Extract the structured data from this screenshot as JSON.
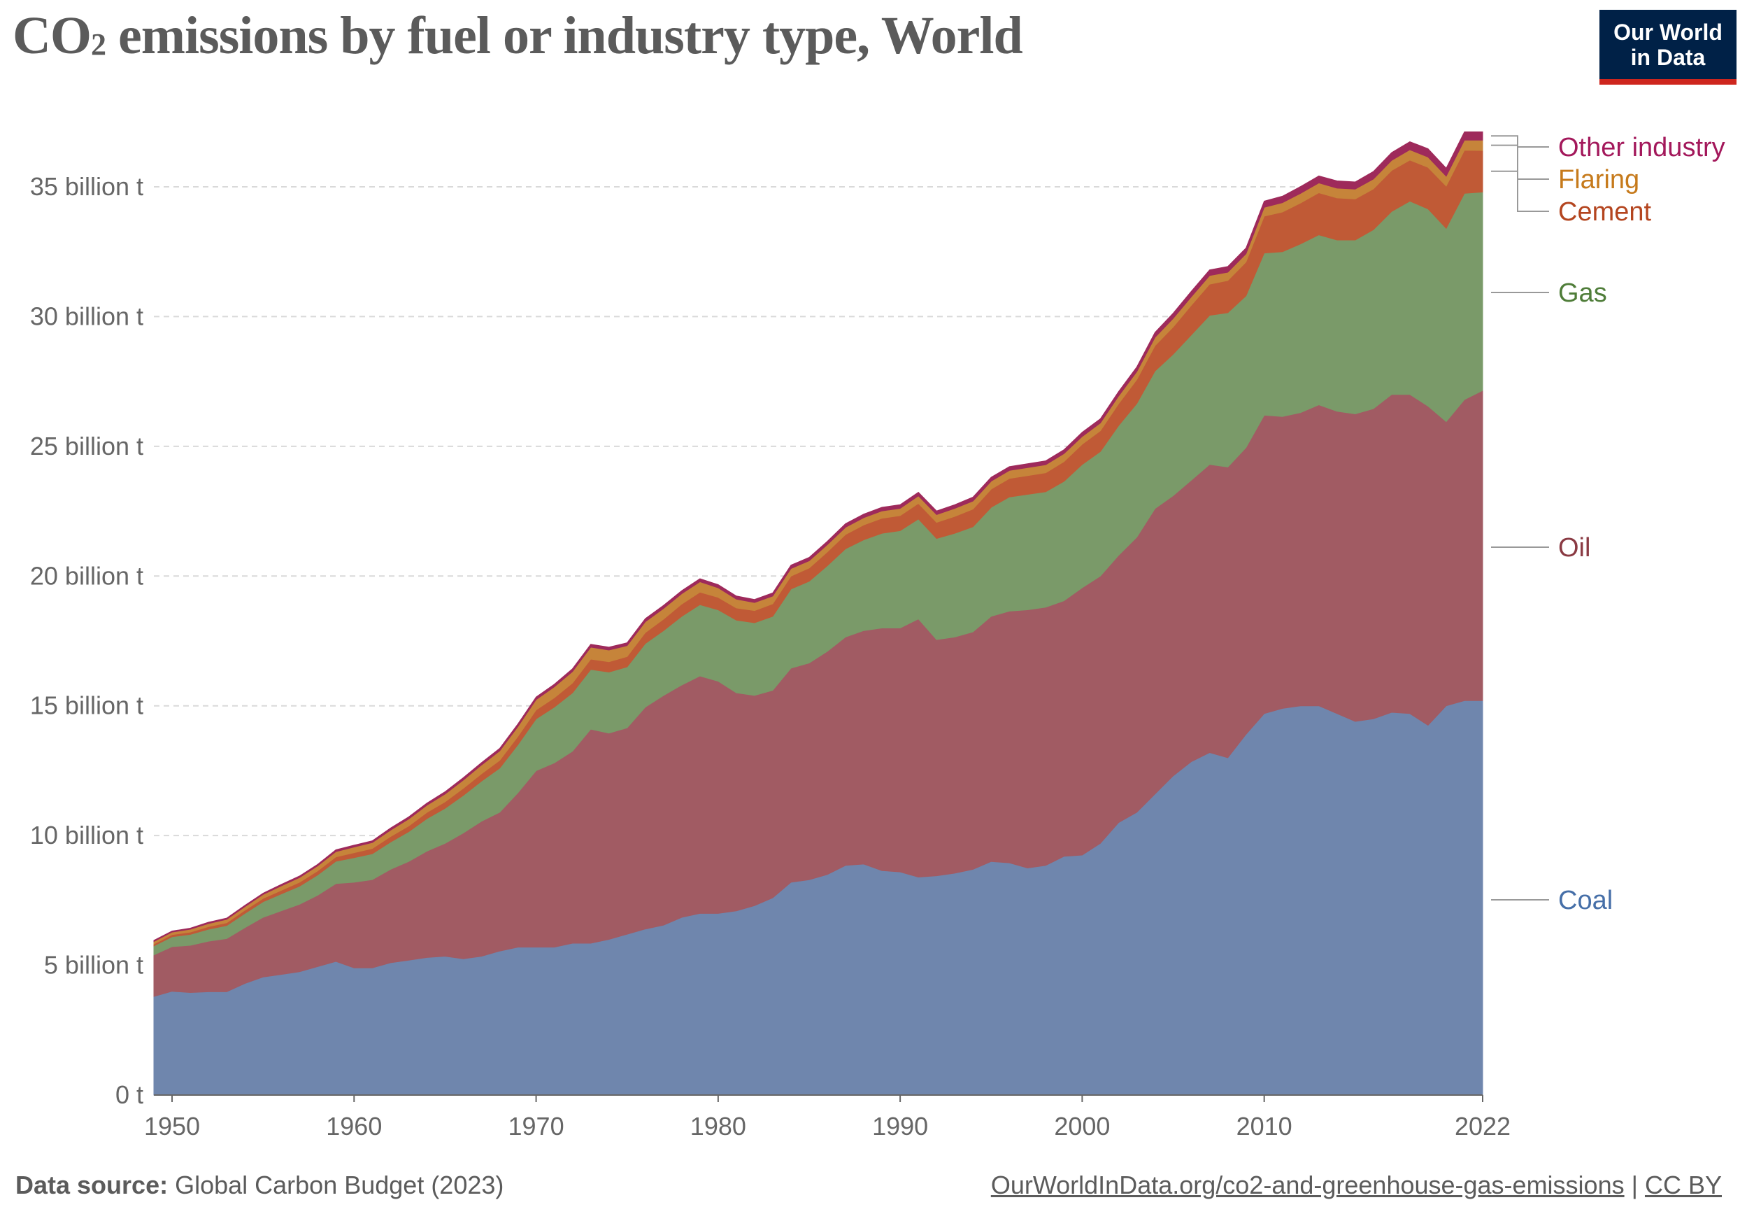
{
  "title_main": "CO",
  "title_sub": "2",
  "title_rest": " emissions by fuel or industry type, World",
  "logo": {
    "line1": "Our World",
    "line2": "in Data"
  },
  "footer": {
    "source_label": "Data source:",
    "source_text": " Global Carbon Budget (2023)",
    "url": "OurWorldInData.org/co2-and-greenhouse-gas-emissions",
    "sep": " | ",
    "license": "CC BY"
  },
  "chart_data": {
    "type": "area",
    "stacked": true,
    "grid": "horizontal dashed",
    "legend": "right, labels at series ends",
    "xlim": [
      1949,
      2022
    ],
    "ylim": [
      0,
      37
    ],
    "yunit": "billion t",
    "x_ticks": [
      "1950",
      "1960",
      "1970",
      "1980",
      "1990",
      "2000",
      "2010",
      "2022"
    ],
    "y_ticks": [
      "0 t",
      "5 billion t",
      "10 billion t",
      "15 billion t",
      "20 billion t",
      "25 billion t",
      "30 billion t",
      "35 billion t"
    ],
    "x": [
      1949,
      1950,
      1951,
      1952,
      1953,
      1954,
      1955,
      1956,
      1957,
      1958,
      1959,
      1960,
      1961,
      1962,
      1963,
      1964,
      1965,
      1966,
      1967,
      1968,
      1969,
      1970,
      1971,
      1972,
      1973,
      1974,
      1975,
      1976,
      1977,
      1978,
      1979,
      1980,
      1981,
      1982,
      1983,
      1984,
      1985,
      1986,
      1987,
      1988,
      1989,
      1990,
      1991,
      1992,
      1993,
      1994,
      1995,
      1996,
      1997,
      1998,
      1999,
      2000,
      2001,
      2002,
      2003,
      2004,
      2005,
      2006,
      2007,
      2008,
      2009,
      2010,
      2011,
      2012,
      2013,
      2014,
      2015,
      2016,
      2017,
      2018,
      2019,
      2020,
      2021,
      2022
    ],
    "series": [
      {
        "name": "Coal",
        "color": "#6f86ad",
        "values": [
          3.8,
          4.0,
          3.95,
          3.98,
          3.98,
          4.3,
          4.55,
          4.65,
          4.75,
          4.95,
          5.15,
          4.9,
          4.9,
          5.1,
          5.2,
          5.3,
          5.35,
          5.25,
          5.35,
          5.55,
          5.7,
          5.7,
          5.7,
          5.85,
          5.85,
          6.0,
          6.2,
          6.4,
          6.55,
          6.85,
          7.0,
          7.0,
          7.1,
          7.3,
          7.6,
          8.2,
          8.3,
          8.5,
          8.85,
          8.9,
          8.65,
          8.6,
          8.4,
          8.45,
          8.55,
          8.7,
          9.0,
          8.95,
          8.75,
          8.85,
          9.2,
          9.25,
          9.7,
          10.5,
          10.9,
          11.6,
          12.3,
          12.85,
          13.2,
          13.0,
          13.9,
          14.7,
          14.9,
          15.0,
          15.0,
          14.7,
          14.4,
          14.5,
          14.75,
          14.7,
          14.25,
          15.0,
          15.2,
          15.2
        ]
      },
      {
        "name": "Oil",
        "color": "#a15b63",
        "values": [
          1.6,
          1.72,
          1.82,
          1.95,
          2.05,
          2.15,
          2.3,
          2.45,
          2.6,
          2.75,
          3.0,
          3.3,
          3.4,
          3.6,
          3.8,
          4.1,
          4.35,
          4.85,
          5.2,
          5.35,
          5.95,
          6.8,
          7.1,
          7.4,
          8.25,
          7.95,
          7.95,
          8.55,
          8.85,
          8.95,
          9.15,
          8.95,
          8.4,
          8.1,
          8.0,
          8.25,
          8.35,
          8.6,
          8.8,
          9.0,
          9.35,
          9.4,
          9.95,
          9.1,
          9.1,
          9.15,
          9.45,
          9.7,
          9.95,
          9.95,
          9.85,
          10.3,
          10.3,
          10.3,
          10.6,
          11.0,
          10.8,
          10.85,
          11.1,
          11.2,
          11.05,
          11.5,
          11.25,
          11.3,
          11.6,
          11.65,
          11.85,
          11.95,
          12.25,
          12.3,
          12.3,
          10.95,
          11.6,
          11.95
        ]
      },
      {
        "name": "Gas",
        "color": "#7a9a69",
        "values": [
          0.35,
          0.38,
          0.42,
          0.46,
          0.5,
          0.55,
          0.6,
          0.65,
          0.7,
          0.78,
          0.86,
          0.95,
          1.0,
          1.05,
          1.15,
          1.25,
          1.35,
          1.45,
          1.55,
          1.7,
          1.85,
          2.0,
          2.15,
          2.25,
          2.3,
          2.35,
          2.35,
          2.45,
          2.5,
          2.65,
          2.75,
          2.75,
          2.8,
          2.8,
          2.85,
          3.05,
          3.15,
          3.3,
          3.4,
          3.5,
          3.65,
          3.75,
          3.85,
          3.9,
          4.0,
          4.05,
          4.2,
          4.4,
          4.45,
          4.45,
          4.6,
          4.75,
          4.8,
          5.0,
          5.15,
          5.3,
          5.45,
          5.6,
          5.75,
          5.95,
          5.85,
          6.25,
          6.35,
          6.5,
          6.55,
          6.6,
          6.7,
          6.9,
          7.05,
          7.45,
          7.6,
          7.45,
          7.95,
          7.65
        ]
      },
      {
        "name": "Cement",
        "color": "#c05a36",
        "values": [
          0.07,
          0.08,
          0.09,
          0.1,
          0.11,
          0.12,
          0.13,
          0.14,
          0.15,
          0.16,
          0.17,
          0.19,
          0.2,
          0.21,
          0.22,
          0.24,
          0.25,
          0.27,
          0.28,
          0.3,
          0.32,
          0.34,
          0.36,
          0.38,
          0.4,
          0.4,
          0.4,
          0.42,
          0.44,
          0.47,
          0.48,
          0.48,
          0.47,
          0.47,
          0.48,
          0.5,
          0.51,
          0.53,
          0.55,
          0.57,
          0.58,
          0.58,
          0.6,
          0.62,
          0.65,
          0.68,
          0.7,
          0.71,
          0.72,
          0.73,
          0.76,
          0.78,
          0.8,
          0.84,
          0.92,
          0.98,
          1.05,
          1.14,
          1.2,
          1.24,
          1.3,
          1.42,
          1.53,
          1.58,
          1.62,
          1.62,
          1.58,
          1.57,
          1.58,
          1.58,
          1.6,
          1.63,
          1.66,
          1.6
        ]
      },
      {
        "name": "Flaring",
        "color": "#c6843a",
        "values": [
          0.1,
          0.1,
          0.11,
          0.12,
          0.13,
          0.14,
          0.15,
          0.17,
          0.18,
          0.19,
          0.2,
          0.22,
          0.23,
          0.25,
          0.27,
          0.28,
          0.3,
          0.32,
          0.34,
          0.36,
          0.38,
          0.4,
          0.42,
          0.44,
          0.46,
          0.45,
          0.42,
          0.42,
          0.41,
          0.4,
          0.4,
          0.37,
          0.34,
          0.31,
          0.3,
          0.29,
          0.28,
          0.28,
          0.28,
          0.28,
          0.28,
          0.28,
          0.29,
          0.3,
          0.31,
          0.31,
          0.31,
          0.31,
          0.31,
          0.31,
          0.31,
          0.3,
          0.3,
          0.3,
          0.31,
          0.32,
          0.33,
          0.33,
          0.33,
          0.32,
          0.32,
          0.34,
          0.36,
          0.37,
          0.38,
          0.38,
          0.38,
          0.38,
          0.39,
          0.4,
          0.4,
          0.38,
          0.39,
          0.4
        ]
      },
      {
        "name": "Other industry",
        "color": "#9e2a5b",
        "values": [
          0.04,
          0.04,
          0.04,
          0.05,
          0.05,
          0.05,
          0.05,
          0.06,
          0.06,
          0.06,
          0.07,
          0.07,
          0.07,
          0.08,
          0.08,
          0.08,
          0.09,
          0.09,
          0.09,
          0.1,
          0.1,
          0.1,
          0.1,
          0.11,
          0.11,
          0.11,
          0.11,
          0.12,
          0.12,
          0.12,
          0.12,
          0.12,
          0.12,
          0.12,
          0.12,
          0.13,
          0.13,
          0.13,
          0.14,
          0.14,
          0.14,
          0.14,
          0.14,
          0.14,
          0.14,
          0.15,
          0.15,
          0.15,
          0.15,
          0.15,
          0.15,
          0.16,
          0.16,
          0.17,
          0.18,
          0.19,
          0.2,
          0.21,
          0.22,
          0.22,
          0.22,
          0.24,
          0.25,
          0.26,
          0.27,
          0.28,
          0.28,
          0.29,
          0.3,
          0.31,
          0.32,
          0.31,
          0.32,
          0.32
        ]
      }
    ],
    "label_colors": {
      "Other industry": "#a3185b",
      "Flaring": "#c67a1b",
      "Cement": "#b4451f",
      "Gas": "#4f7d39",
      "Oil": "#8a3a43",
      "Coal": "#466fa8"
    }
  }
}
